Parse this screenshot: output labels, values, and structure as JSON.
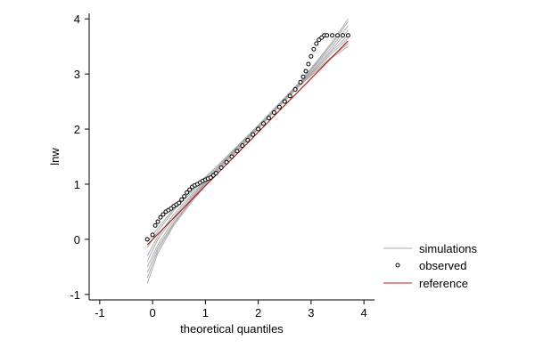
{
  "chart_data": {
    "type": "scatter",
    "xlabel": "theoretical quantiles",
    "ylabel": "lnw",
    "xlim": [
      -1.2,
      4.2
    ],
    "ylim": [
      -1.1,
      4.1
    ],
    "xticks": [
      "-1",
      "0",
      "1",
      "2",
      "3",
      "4"
    ],
    "yticks": [
      "-1",
      "0",
      "1",
      "2",
      "3",
      "4"
    ],
    "grid": false,
    "legend_position": "right",
    "colors": {
      "simulations": "#a8a8a8",
      "observed": "#000000",
      "reference": "#b02020"
    },
    "series": [
      {
        "name": "simulations",
        "kind": "lines",
        "curves": [
          {
            "x": [
              -0.1,
              0.1,
              0.4,
              0.8,
              1.2,
              1.6,
              2.0,
              2.4,
              2.8,
              3.1,
              3.4,
              3.7
            ],
            "y": [
              -0.8,
              -0.25,
              0.25,
              0.75,
              1.2,
              1.62,
              2.02,
              2.44,
              2.84,
              3.15,
              3.45,
              3.8
            ]
          },
          {
            "x": [
              -0.1,
              0.1,
              0.4,
              0.8,
              1.2,
              1.6,
              2.0,
              2.4,
              2.8,
              3.1,
              3.4,
              3.7
            ],
            "y": [
              -0.6,
              -0.15,
              0.3,
              0.8,
              1.22,
              1.6,
              2.0,
              2.42,
              2.82,
              3.1,
              3.38,
              3.65
            ]
          },
          {
            "x": [
              -0.1,
              0.1,
              0.4,
              0.8,
              1.2,
              1.6,
              2.0,
              2.4,
              2.8,
              3.1,
              3.4,
              3.7
            ],
            "y": [
              -0.4,
              0.0,
              0.4,
              0.85,
              1.25,
              1.65,
              2.05,
              2.45,
              2.85,
              3.2,
              3.55,
              3.95
            ]
          },
          {
            "x": [
              -0.1,
              0.1,
              0.4,
              0.8,
              1.2,
              1.6,
              2.0,
              2.4,
              2.8,
              3.1,
              3.4,
              3.7
            ],
            "y": [
              -0.3,
              0.05,
              0.45,
              0.88,
              1.27,
              1.66,
              2.04,
              2.44,
              2.83,
              3.12,
              3.42,
              3.7
            ]
          },
          {
            "x": [
              -0.1,
              0.1,
              0.4,
              0.8,
              1.2,
              1.6,
              2.0,
              2.4,
              2.8,
              3.1,
              3.4,
              3.7
            ],
            "y": [
              -0.15,
              0.15,
              0.52,
              0.92,
              1.3,
              1.68,
              2.06,
              2.46,
              2.86,
              3.18,
              3.5,
              3.88
            ]
          },
          {
            "x": [
              -0.1,
              0.1,
              0.4,
              0.8,
              1.2,
              1.6,
              2.0,
              2.4,
              2.8,
              3.1,
              3.4,
              3.7
            ],
            "y": [
              -0.5,
              -0.1,
              0.35,
              0.82,
              1.24,
              1.63,
              2.03,
              2.43,
              2.81,
              3.08,
              3.32,
              3.55
            ]
          },
          {
            "x": [
              -0.1,
              0.1,
              0.4,
              0.8,
              1.2,
              1.6,
              2.0,
              2.4,
              2.8,
              3.1,
              3.4,
              3.7
            ],
            "y": [
              -0.05,
              0.2,
              0.55,
              0.95,
              1.31,
              1.69,
              2.07,
              2.47,
              2.87,
              3.22,
              3.58,
              4.0
            ]
          },
          {
            "x": [
              -0.1,
              0.1,
              0.4,
              0.8,
              1.2,
              1.6,
              2.0,
              2.4,
              2.8,
              3.1,
              3.4,
              3.7
            ],
            "y": [
              -0.7,
              -0.2,
              0.28,
              0.78,
              1.21,
              1.61,
              2.01,
              2.41,
              2.8,
              3.05,
              3.3,
              3.5
            ]
          }
        ]
      },
      {
        "name": "observed",
        "kind": "points",
        "x": [
          -0.1,
          0.0,
          0.05,
          0.1,
          0.15,
          0.2,
          0.25,
          0.3,
          0.35,
          0.4,
          0.45,
          0.5,
          0.55,
          0.6,
          0.65,
          0.7,
          0.75,
          0.8,
          0.85,
          0.9,
          0.95,
          1.0,
          1.05,
          1.1,
          1.15,
          1.2,
          1.3,
          1.4,
          1.5,
          1.6,
          1.7,
          1.8,
          1.9,
          2.0,
          2.1,
          2.2,
          2.3,
          2.4,
          2.5,
          2.6,
          2.7,
          2.8,
          2.85,
          2.9,
          2.95,
          3.0,
          3.05,
          3.1,
          3.15,
          3.2,
          3.25,
          3.3,
          3.4,
          3.5,
          3.6,
          3.7
        ],
        "y": [
          0.0,
          0.08,
          0.25,
          0.32,
          0.4,
          0.45,
          0.5,
          0.53,
          0.56,
          0.6,
          0.63,
          0.66,
          0.72,
          0.78,
          0.85,
          0.9,
          0.95,
          0.98,
          1.0,
          1.03,
          1.06,
          1.08,
          1.1,
          1.12,
          1.16,
          1.2,
          1.3,
          1.4,
          1.5,
          1.6,
          1.7,
          1.8,
          1.9,
          2.0,
          2.1,
          2.2,
          2.3,
          2.4,
          2.5,
          2.6,
          2.72,
          2.85,
          2.95,
          3.05,
          3.18,
          3.32,
          3.45,
          3.55,
          3.62,
          3.66,
          3.7,
          3.7,
          3.7,
          3.7,
          3.7,
          3.7
        ]
      },
      {
        "name": "reference",
        "kind": "line",
        "x": [
          -0.1,
          3.7
        ],
        "y": [
          -0.1,
          3.6
        ]
      }
    ]
  }
}
